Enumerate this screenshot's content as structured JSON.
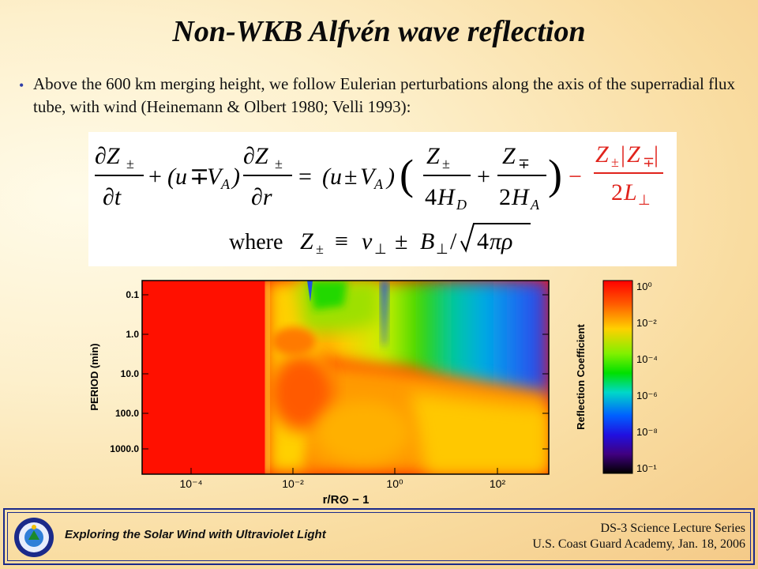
{
  "slide": {
    "title": "Non-WKB Alfvén wave reflection",
    "bullet": "Above the 600 km merging height, we follow Eulerian perturbations along the axis of the superradial flux tube, with wind  (Heinemann & Olbert 1980; Velli 1993):"
  },
  "equation": {
    "where_label": "where",
    "accent_color": "#e0231c"
  },
  "chart_data": [
    {
      "type": "heatmap",
      "xlabel": "r/R⊙ − 1",
      "ylabel": "PERIOD (min)",
      "x_scale": "log",
      "y_scale": "log",
      "y_inverted": true,
      "xlim": [
        3e-05,
        3000
      ],
      "ylim": [
        0.05,
        3000
      ],
      "x_ticks": [
        "10⁻⁴",
        "10⁻²",
        "10⁰",
        "10²"
      ],
      "y_ticks": [
        "0.1",
        "1.0",
        "10.0",
        "100.0",
        "1000.0"
      ],
      "colorbar": {
        "label": "Reflection Coefficient",
        "scale": "log",
        "range": [
          1e-10,
          1
        ],
        "ticks": [
          "10⁰",
          "10⁻²",
          "10⁻⁴",
          "10⁻⁶",
          "10⁻⁸",
          "10⁻¹⁰"
        ]
      }
    }
  ],
  "footer": {
    "left": "Exploring the Solar Wind with Ultraviolet Light",
    "right_line1": "DS-3 Science Lecture Series",
    "right_line2": "U.S. Coast Guard Academy, Jan. 18, 2006",
    "border_color": "#1b2a8a"
  }
}
